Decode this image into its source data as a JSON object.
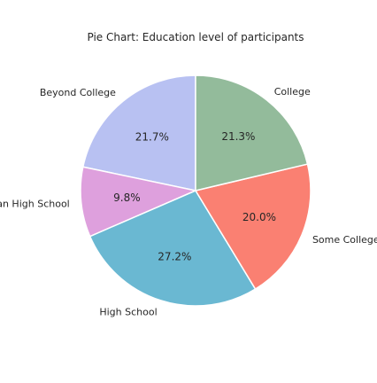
{
  "chart_data": {
    "type": "pie",
    "title": "Pie Chart: Education level of participants",
    "start_angle_deg": 90,
    "direction": "counterclockwise",
    "slices": [
      {
        "label": "Beyond College",
        "value": 21.7,
        "pct_text": "21.7%",
        "color": "#b8c1f2"
      },
      {
        "label": "Less than High School",
        "value": 9.8,
        "pct_text": "9.8%",
        "color": "#dea0dd"
      },
      {
        "label": "High School",
        "value": 27.2,
        "pct_text": "27.2%",
        "color": "#6ab8d2"
      },
      {
        "label": "Some College",
        "value": 20.0,
        "pct_text": "20.0%",
        "color": "#fa8072"
      },
      {
        "label": "College",
        "value": 21.3,
        "pct_text": "21.3%",
        "color": "#93bb9b"
      }
    ]
  }
}
